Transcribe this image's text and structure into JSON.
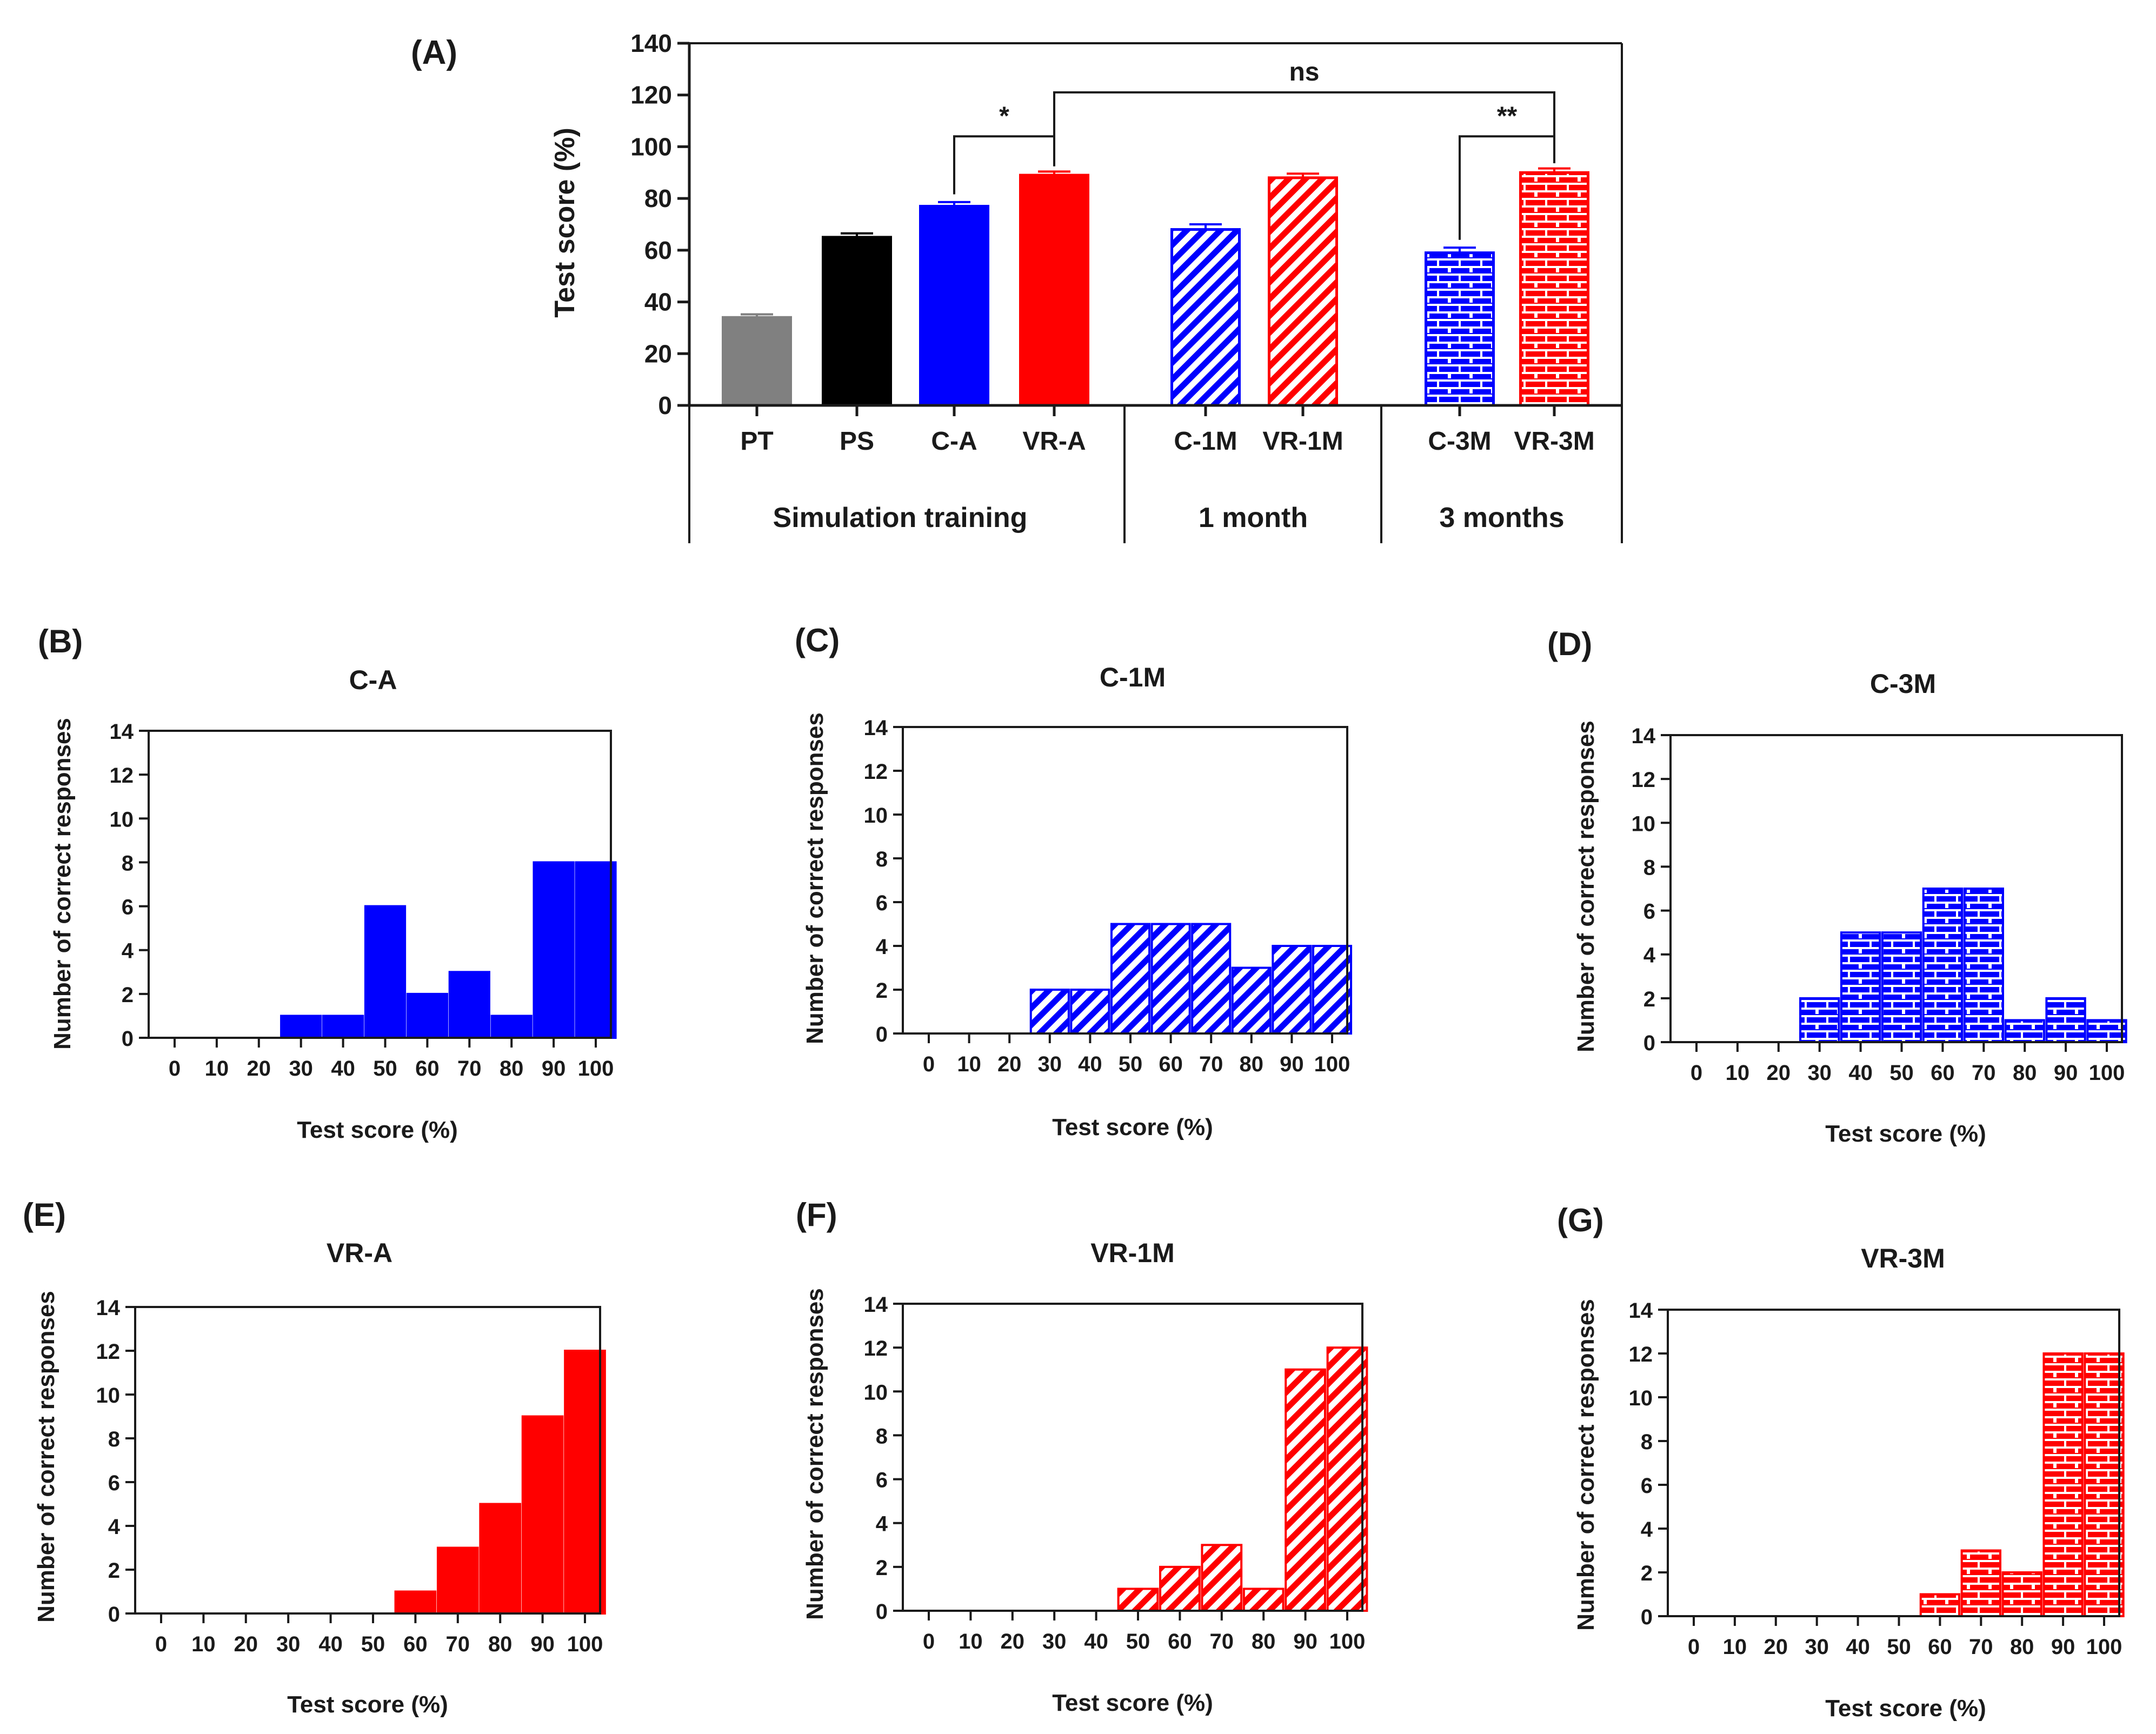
{
  "colors": {
    "gray": "#808080",
    "black": "#000000",
    "blue": "#0000ff",
    "red": "#ff0000",
    "axis": "#1a1a1a"
  },
  "chart_data": [
    {
      "id": "A",
      "type": "bar",
      "panel_label": "(A)",
      "ylabel": "Test score (%)",
      "ylim": [
        0,
        140
      ],
      "yticks": [
        0,
        20,
        40,
        60,
        80,
        100,
        120,
        140
      ],
      "categories": [
        "PT",
        "PS",
        "C-A",
        "VR-A",
        "C-1M",
        "VR-1M",
        "C-3M",
        "VR-3M"
      ],
      "values": [
        34,
        65,
        77,
        89,
        68,
        88,
        59,
        90
      ],
      "errors": [
        1.2,
        1.5,
        1.6,
        1.4,
        2.0,
        1.6,
        2.0,
        1.6
      ],
      "fills": [
        "solid",
        "solid",
        "solid",
        "solid",
        "hatch",
        "hatch",
        "brick",
        "brick"
      ],
      "bar_colors": [
        "gray",
        "black",
        "blue",
        "red",
        "blue",
        "red",
        "blue",
        "red"
      ],
      "groups": [
        {
          "label": "Simulation training",
          "from": 0,
          "to": 3
        },
        {
          "label": "1 month",
          "from": 4,
          "to": 5
        },
        {
          "label": "3 months",
          "from": 6,
          "to": 7
        }
      ],
      "significance": [
        {
          "from": 2,
          "to": 3,
          "label": "*",
          "y": 104
        },
        {
          "from": 3,
          "to": 7,
          "label": "ns",
          "y": 121
        },
        {
          "from": 6,
          "to": 7,
          "label": "**",
          "y": 104
        }
      ]
    },
    {
      "id": "B",
      "type": "bar",
      "panel_label": "(B)",
      "title": "C-A",
      "xlabel": "Test score (%)",
      "ylabel": "Number of correct responses",
      "ylim": [
        0,
        14
      ],
      "yticks": [
        0,
        2,
        4,
        6,
        8,
        10,
        12,
        14
      ],
      "categories": [
        "0",
        "10",
        "20",
        "30",
        "40",
        "50",
        "60",
        "70",
        "80",
        "90",
        "100"
      ],
      "values": [
        0,
        0,
        0,
        1,
        1,
        6,
        2,
        3,
        1,
        8,
        8
      ],
      "color": "blue",
      "fill": "solid"
    },
    {
      "id": "C",
      "type": "bar",
      "panel_label": "(C)",
      "title": "C-1M",
      "xlabel": "Test score (%)",
      "ylabel": "Number of correct responses",
      "ylim": [
        0,
        14
      ],
      "yticks": [
        0,
        2,
        4,
        6,
        8,
        10,
        12,
        14
      ],
      "categories": [
        "0",
        "10",
        "20",
        "30",
        "40",
        "50",
        "60",
        "70",
        "80",
        "90",
        "100"
      ],
      "values": [
        0,
        0,
        0,
        2,
        2,
        5,
        5,
        5,
        3,
        4,
        4
      ],
      "color": "blue",
      "fill": "hatch"
    },
    {
      "id": "D",
      "type": "bar",
      "panel_label": "(D)",
      "title": "C-3M",
      "xlabel": "Test score (%)",
      "ylabel": "Number of correct responses",
      "ylim": [
        0,
        14
      ],
      "yticks": [
        0,
        2,
        4,
        6,
        8,
        10,
        12,
        14
      ],
      "categories": [
        "0",
        "10",
        "20",
        "30",
        "40",
        "50",
        "60",
        "70",
        "80",
        "90",
        "100"
      ],
      "values": [
        0,
        0,
        0,
        2,
        5,
        5,
        7,
        7,
        1,
        2,
        1
      ],
      "color": "blue",
      "fill": "brick"
    },
    {
      "id": "E",
      "type": "bar",
      "panel_label": "(E)",
      "title": "VR-A",
      "xlabel": "Test score (%)",
      "ylabel": "Number of correct responses",
      "ylim": [
        0,
        14
      ],
      "yticks": [
        0,
        2,
        4,
        6,
        8,
        10,
        12,
        14
      ],
      "categories": [
        "0",
        "10",
        "20",
        "30",
        "40",
        "50",
        "60",
        "70",
        "80",
        "90",
        "100"
      ],
      "values": [
        0,
        0,
        0,
        0,
        0,
        0,
        1,
        3,
        5,
        9,
        12
      ],
      "color": "red",
      "fill": "solid"
    },
    {
      "id": "F",
      "type": "bar",
      "panel_label": "(F)",
      "title": "VR-1M",
      "xlabel": "Test score (%)",
      "ylabel": "Number of correct responses",
      "ylim": [
        0,
        14
      ],
      "yticks": [
        0,
        2,
        4,
        6,
        8,
        10,
        12,
        14
      ],
      "categories": [
        "0",
        "10",
        "20",
        "30",
        "40",
        "50",
        "60",
        "70",
        "80",
        "90",
        "100"
      ],
      "values": [
        0,
        0,
        0,
        0,
        0,
        1,
        2,
        3,
        1,
        11,
        12
      ],
      "color": "red",
      "fill": "hatch"
    },
    {
      "id": "G",
      "type": "bar",
      "panel_label": "(G)",
      "title": "VR-3M",
      "xlabel": "Test score (%)",
      "ylabel": "Number of correct responses",
      "ylim": [
        0,
        14
      ],
      "yticks": [
        0,
        2,
        4,
        6,
        8,
        10,
        12,
        14
      ],
      "categories": [
        "0",
        "10",
        "20",
        "30",
        "40",
        "50",
        "60",
        "70",
        "80",
        "90",
        "100"
      ],
      "values": [
        0,
        0,
        0,
        0,
        0,
        0,
        1,
        3,
        2,
        12,
        12
      ],
      "color": "red",
      "fill": "brick"
    }
  ]
}
